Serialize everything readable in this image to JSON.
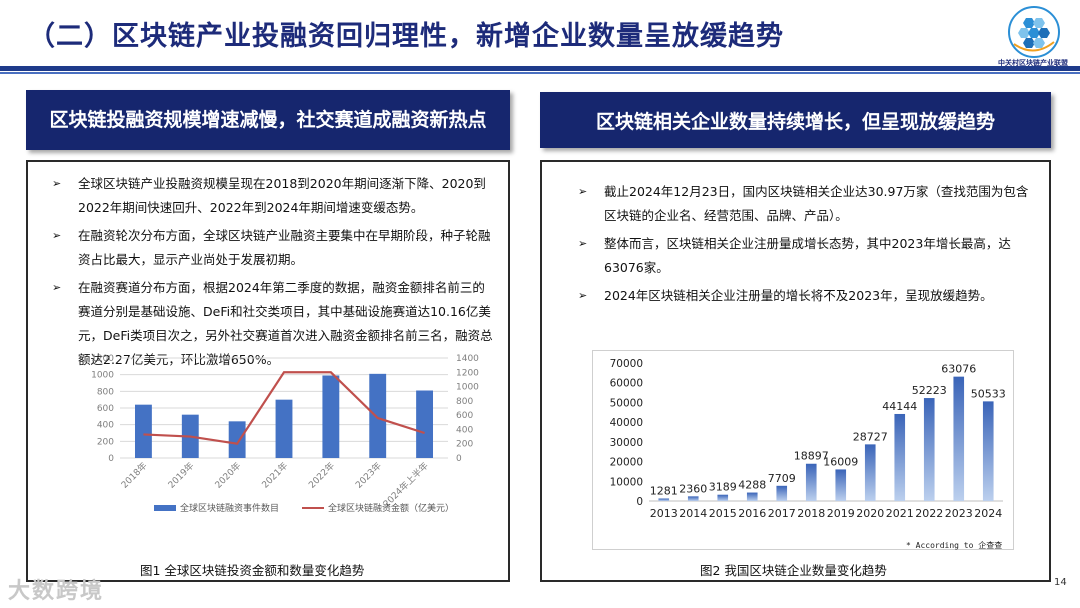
{
  "title": "（二）区块链产业投融资回归理性，新增企业数量呈放缓趋势",
  "logo_text": "中关村区块链产业联盟",
  "left": {
    "header": "区块链投融资规模增速减慢，社交赛道成融资新热点",
    "bullets": [
      "全球区块链产业投融资规模呈现在2018到2020年期间逐渐下降、2020到2022年期间快速回升、2022年到2024年期间增速变缓态势。",
      "在融资轮次分布方面，全球区块链产业融资主要集中在早期阶段，种子轮融资占比最大，显示产业尚处于发展初期。",
      "在融资赛道分布方面，根据2024年第二季度的数据，融资金额排名前三的赛道分别是基础设施、DeFi和社交类项目，其中基础设施赛道达10.16亿美元，DeFi类项目次之，另外社交赛道首次进入融资金额排名前三名，融资总额达2.27亿美元，环比激增650%。"
    ],
    "caption": "图1  全球区块链投资金额和数量变化趋势"
  },
  "right": {
    "header": "区块链相关企业数量持续增长，但呈现放缓趋势",
    "bullets": [
      "截止2024年12月23日，国内区块链相关企业达30.97万家（查找范围为包含区块链的企业名、经营范围、品牌、产品）。",
      "整体而言，区块链相关企业注册量成增长态势，其中2023年增长最高，达63076家。",
      "2024年区块链相关企业注册量的增长将不及2023年，呈现放缓趋势。"
    ],
    "source": "* According to 企查查",
    "caption": "图2  我国区块链企业数量变化趋势"
  },
  "page_number": "14",
  "watermark": "大数跨境",
  "chart_data": [
    {
      "type": "bar",
      "categories": [
        "2018年",
        "2019年",
        "2020年",
        "2021年",
        "2022年",
        "2023年",
        "2024年上半年"
      ],
      "series": [
        {
          "name": "全球区块链融资事件数目",
          "type": "bar",
          "axis": "left",
          "values": [
            640,
            520,
            440,
            700,
            990,
            1010,
            810
          ]
        },
        {
          "name": "全球区块链融资金额（亿美元）",
          "type": "line",
          "axis": "right",
          "values": [
            330,
            300,
            200,
            1200,
            1200,
            560,
            350
          ]
        }
      ],
      "ylim": [
        0,
        1200
      ],
      "y2lim": [
        0,
        1400
      ],
      "yticks": [
        "0",
        "200",
        "400",
        "600",
        "800",
        "1000",
        "1200"
      ],
      "y2ticks": [
        "0",
        "200",
        "400",
        "600",
        "800",
        "1000",
        "1200",
        "1400"
      ],
      "grid": true,
      "legend": "bottom",
      "colors": {
        "bar": "#4472c4",
        "line": "#c0504d"
      }
    },
    {
      "type": "bar",
      "categories": [
        "2013",
        "2014",
        "2015",
        "2016",
        "2017",
        "2018",
        "2019",
        "2020",
        "2021",
        "2022",
        "2023",
        "2024"
      ],
      "values": [
        1281,
        2360,
        3189,
        4288,
        7709,
        18897,
        16009,
        28727,
        44144,
        52223,
        63076,
        50533
      ],
      "data_labels": [
        "1281",
        "2360",
        "3189",
        "4288",
        "7709",
        "18897",
        "16009",
        "28727",
        "44144",
        "52223",
        "63076",
        "50533"
      ],
      "ylim": [
        0,
        70000
      ],
      "yticks": [
        "0",
        "10000",
        "20000",
        "30000",
        "40000",
        "50000",
        "60000",
        "70000"
      ],
      "grid": false,
      "colors": {
        "bar": "#4472c4"
      }
    }
  ]
}
